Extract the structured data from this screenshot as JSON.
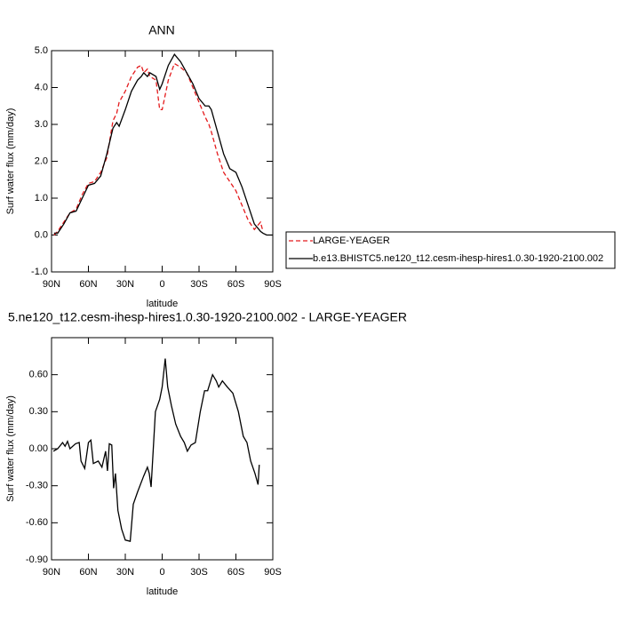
{
  "chart_data": [
    {
      "type": "line",
      "title": "ANN",
      "xlabel": "latitude",
      "ylabel": "Surf water flux (mm/day)",
      "x": [
        88,
        85,
        80,
        75,
        70,
        65,
        60,
        55,
        50,
        45,
        40,
        37,
        35,
        30,
        25,
        20,
        17,
        15,
        12,
        10,
        5,
        2,
        0,
        -5,
        -10,
        -15,
        -20,
        -25,
        -30,
        -35,
        -38,
        -40,
        -45,
        -50,
        -55,
        -60,
        -65,
        -70,
        -75,
        -80,
        -82,
        -85,
        -90
      ],
      "series": [
        {
          "name": "LARGE-YEAGER",
          "color": "#e41a1c",
          "line_style": "dashed",
          "values": [
            0.0,
            0.1,
            0.35,
            0.6,
            0.7,
            1.1,
            1.4,
            1.45,
            1.7,
            2.1,
            3.1,
            3.3,
            3.6,
            3.9,
            4.3,
            4.55,
            4.6,
            4.4,
            4.5,
            4.3,
            4.2,
            3.4,
            3.4,
            4.2,
            4.65,
            4.55,
            4.4,
            4.0,
            3.6,
            3.2,
            3.0,
            2.8,
            2.2,
            1.7,
            1.45,
            1.2,
            0.8,
            0.4,
            0.15,
            0.35,
            0.1,
            null,
            null
          ]
        },
        {
          "name": "b.e13.BHISTC5.ne120_t12.cesm-ihesp-hires1.0.30-1920-2100.002",
          "color": "#000000",
          "line_style": "solid",
          "values": [
            0.05,
            0.05,
            0.3,
            0.6,
            0.65,
            1.0,
            1.35,
            1.4,
            1.6,
            2.2,
            2.9,
            3.05,
            2.95,
            3.4,
            3.9,
            4.2,
            4.3,
            4.4,
            4.3,
            4.4,
            4.3,
            3.95,
            4.1,
            4.6,
            4.9,
            4.7,
            4.4,
            4.1,
            3.7,
            3.5,
            3.5,
            3.4,
            2.8,
            2.2,
            1.8,
            1.7,
            1.3,
            0.8,
            0.3,
            0.1,
            0.05,
            0.0,
            0.0
          ]
        }
      ],
      "xlim": [
        90,
        -90
      ],
      "xticks": [
        {
          "value": 90,
          "label": "90N"
        },
        {
          "value": 60,
          "label": "60N"
        },
        {
          "value": 30,
          "label": "30N"
        },
        0,
        {
          "value": -30,
          "label": "30S"
        },
        {
          "value": -60,
          "label": "60S"
        },
        {
          "value": -90,
          "label": "90S"
        }
      ],
      "ylim": [
        -1,
        5
      ],
      "yticks": [
        {
          "value": -1,
          "label": "-1.0"
        },
        {
          "value": 0,
          "label": "0.0"
        },
        {
          "value": 1,
          "label": "1.0"
        },
        {
          "value": 2,
          "label": "2.0"
        },
        {
          "value": 3,
          "label": "3.0"
        },
        {
          "value": 4,
          "label": "4.0"
        },
        {
          "value": 5,
          "label": "5.0"
        }
      ],
      "legend": "right"
    },
    {
      "type": "line",
      "title": "5.ne120_t12.cesm-ihesp-hires1.0.30-1920-2100.002 - LARGE-YEAGER",
      "xlabel": "latitude",
      "ylabel": "Surf water flux (mm/day)",
      "x": [
        88.5,
        85,
        81,
        79,
        77,
        75,
        70.5,
        67.5,
        66,
        63,
        60,
        58,
        56,
        52,
        49,
        46,
        44.5,
        43,
        41,
        39.5,
        38,
        36,
        33,
        30,
        26,
        23.5,
        20,
        15,
        12,
        10.5,
        9,
        5.5,
        2,
        0,
        -2.5,
        -4.5,
        -7.5,
        -11,
        -15,
        -18,
        -20.5,
        -23.5,
        -27,
        -31,
        -34.5,
        -37,
        -41,
        -44,
        -46,
        -49,
        -53,
        -57.5,
        -62,
        -66,
        -69,
        -72,
        -75.5,
        -78,
        -79
      ],
      "color": "#000000",
      "values": [
        -0.02,
        0.0,
        0.05,
        0.02,
        0.06,
        0.0,
        0.04,
        0.05,
        -0.1,
        -0.16,
        0.05,
        0.07,
        -0.12,
        -0.1,
        -0.15,
        -0.02,
        -0.18,
        0.04,
        0.03,
        -0.32,
        -0.2,
        -0.5,
        -0.65,
        -0.74,
        -0.75,
        -0.45,
        -0.35,
        -0.22,
        -0.15,
        -0.2,
        -0.31,
        0.3,
        0.4,
        0.5,
        0.73,
        0.5,
        0.35,
        0.2,
        0.1,
        0.05,
        -0.02,
        0.03,
        0.05,
        0.3,
        0.47,
        0.47,
        0.6,
        0.55,
        0.5,
        0.55,
        0.5,
        0.45,
        0.3,
        0.1,
        0.05,
        -0.1,
        -0.2,
        -0.29,
        -0.13
      ],
      "xlim": [
        90,
        -90
      ],
      "xticks": [
        {
          "value": 90,
          "label": "90N"
        },
        {
          "value": 60,
          "label": "60N"
        },
        {
          "value": 30,
          "label": "30N"
        },
        0,
        {
          "value": -30,
          "label": "30S"
        },
        {
          "value": -60,
          "label": "60S"
        },
        {
          "value": -90,
          "label": "90S"
        }
      ],
      "ylim": [
        -0.9,
        0.9
      ],
      "yticks": [
        {
          "value": -0.9,
          "label": "-0.90"
        },
        {
          "value": -0.6,
          "label": "-0.60"
        },
        {
          "value": -0.3,
          "label": "-0.30"
        },
        {
          "value": 0,
          "label": "0.00"
        },
        {
          "value": 0.3,
          "label": "0.30"
        },
        {
          "value": 0.6,
          "label": "0.60"
        }
      ]
    }
  ]
}
